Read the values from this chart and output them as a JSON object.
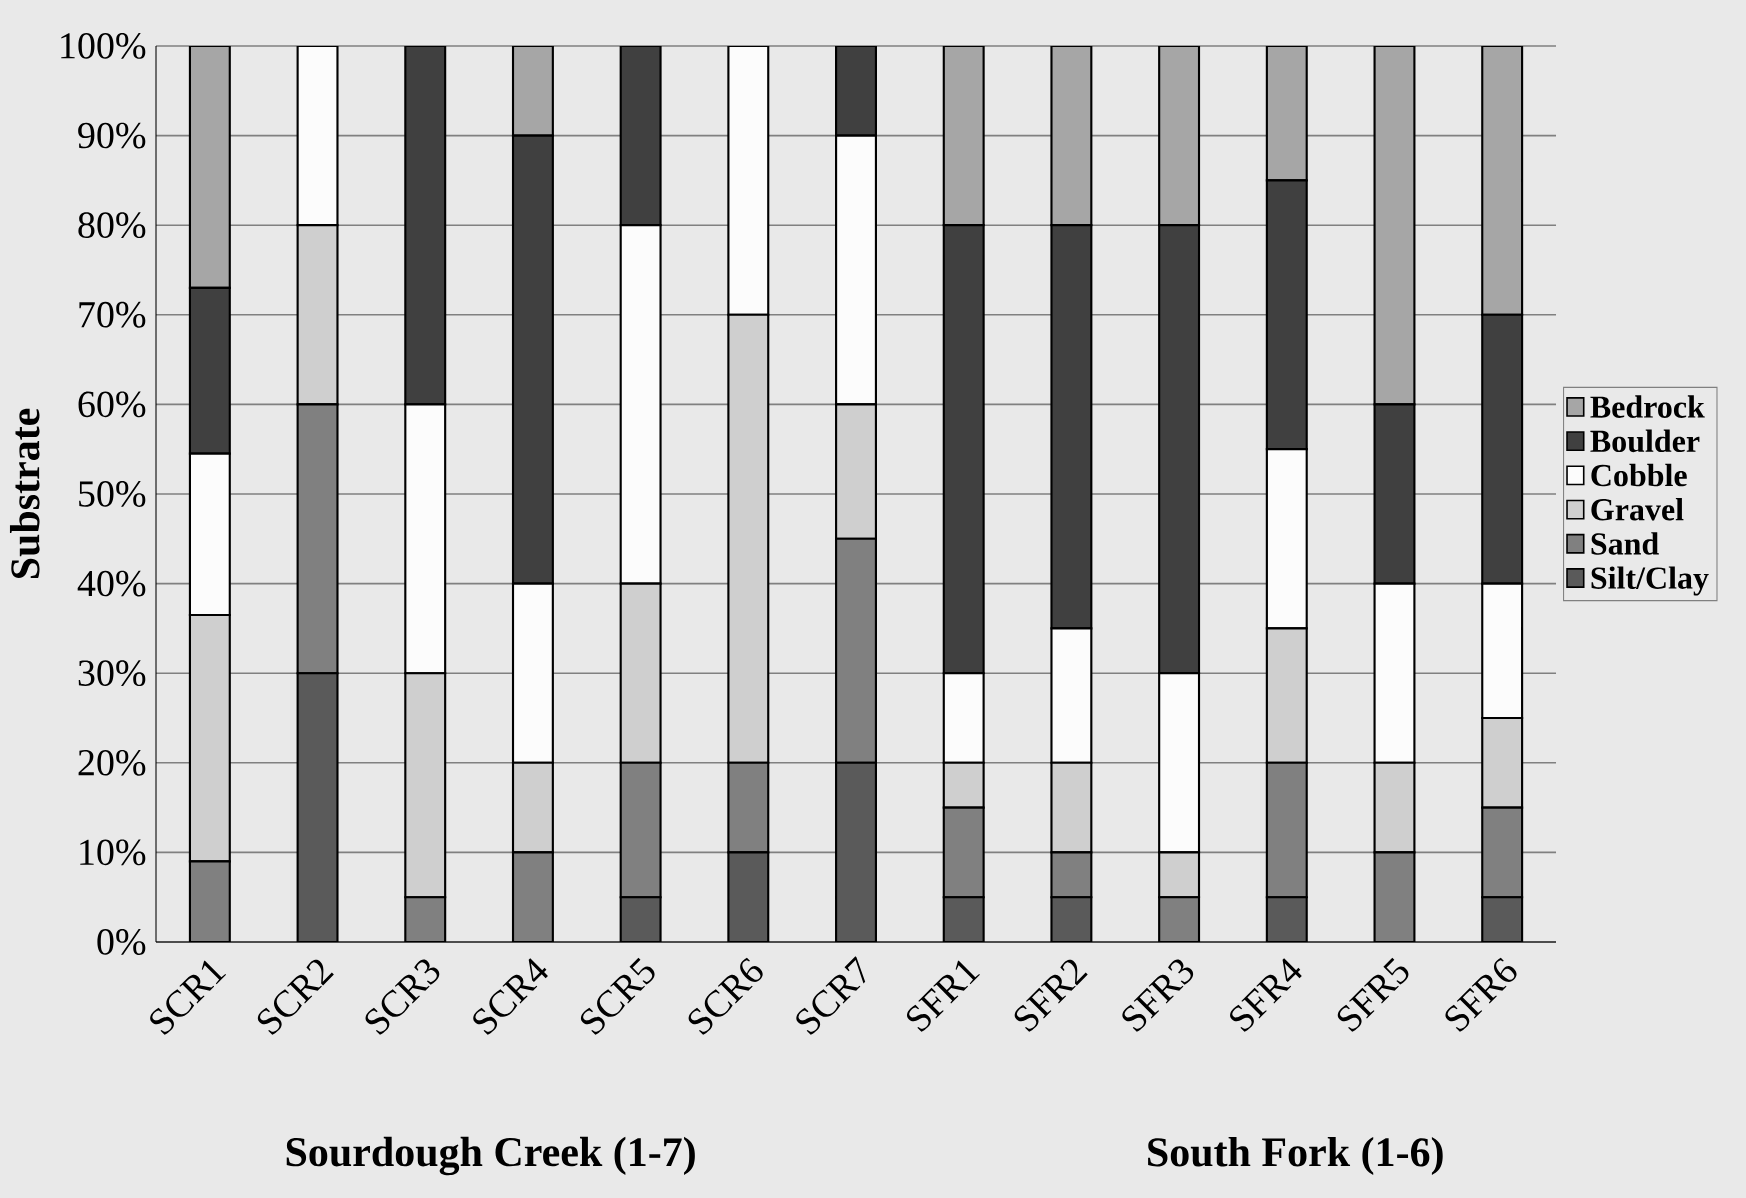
{
  "chart_data": {
    "type": "bar",
    "stacked": true,
    "ylabel": "Substrate",
    "categories": [
      "SCR1",
      "SCR2",
      "SCR3",
      "SCR4",
      "SCR5",
      "SCR6",
      "SCR7",
      "SFR1",
      "SFR2",
      "SFR3",
      "SFR4",
      "SFR5",
      "SFR6"
    ],
    "series": [
      {
        "name": "Silt/Clay",
        "color": "#5a5a5a",
        "values": [
          0,
          30,
          0,
          0,
          5,
          10,
          20,
          5,
          5,
          0,
          5,
          0,
          5
        ]
      },
      {
        "name": "Sand",
        "color": "#808080",
        "values": [
          9,
          30,
          5,
          10,
          15,
          10,
          25,
          10,
          5,
          5,
          15,
          10,
          10
        ]
      },
      {
        "name": "Gravel",
        "color": "#cfcfcf",
        "values": [
          27.5,
          20,
          25,
          10,
          20,
          50,
          15,
          5,
          10,
          5,
          15,
          10,
          10
        ]
      },
      {
        "name": "Cobble",
        "color": "#fcfcfc",
        "values": [
          18,
          20,
          30,
          20,
          40,
          30,
          30,
          10,
          15,
          20,
          20,
          20,
          15
        ]
      },
      {
        "name": "Boulder",
        "color": "#404040",
        "values": [
          18.5,
          0,
          40,
          50,
          20,
          0,
          10,
          50,
          45,
          50,
          30,
          20,
          30
        ]
      },
      {
        "name": "Bedrock",
        "color": "#a6a6a6",
        "values": [
          27,
          0,
          0,
          10,
          0,
          0,
          0,
          20,
          20,
          20,
          15,
          40,
          30
        ]
      }
    ],
    "ylim": [
      0,
      100
    ],
    "yticks": [
      {
        "value": 0,
        "label": "0%"
      },
      {
        "value": 10,
        "label": "10%"
      },
      {
        "value": 20,
        "label": "20%"
      },
      {
        "value": 30,
        "label": "30%"
      },
      {
        "value": 40,
        "label": "40%"
      },
      {
        "value": 50,
        "label": "50%"
      },
      {
        "value": 60,
        "label": "60%"
      },
      {
        "value": 70,
        "label": "70%"
      },
      {
        "value": 80,
        "label": "80%"
      },
      {
        "value": 90,
        "label": "90%"
      },
      {
        "value": 100,
        "label": "100%"
      }
    ],
    "grid": "y",
    "legend": "right",
    "annotations": [
      "Sourdough Creek (1-7)",
      "South Fork (1-6)"
    ]
  }
}
